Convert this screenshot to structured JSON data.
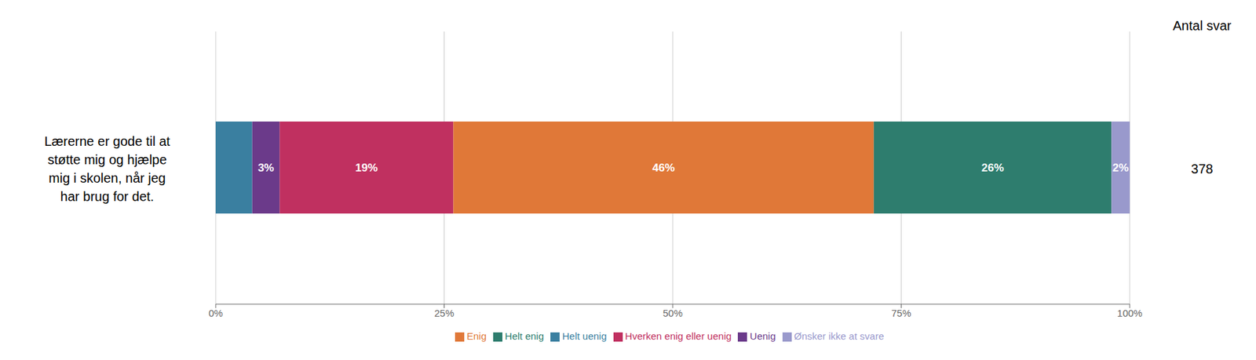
{
  "chart_data": {
    "type": "bar",
    "orientation": "horizontal",
    "stacked": true,
    "categories": [
      null
    ],
    "series": [
      {
        "name": "Helt uenig",
        "color": "#3a7fa0",
        "values": [
          4
        ],
        "value_labels": [
          null
        ]
      },
      {
        "name": "Uenig",
        "color": "#6b3a8a",
        "values": [
          3
        ],
        "value_labels": [
          "3%"
        ]
      },
      {
        "name": "Hverken enig eller uenig",
        "color": "#c03060",
        "values": [
          19
        ],
        "value_labels": [
          "19%"
        ]
      },
      {
        "name": "Enig",
        "color": "#e07838",
        "values": [
          46
        ],
        "value_labels": [
          "46%"
        ]
      },
      {
        "name": "Helt enig",
        "color": "#2e7d6e",
        "values": [
          26
        ],
        "value_labels": [
          "26%"
        ]
      },
      {
        "name": "Ønsker ikke at svare",
        "color": "#9999cc",
        "values": [
          2
        ],
        "value_labels": [
          "2%"
        ]
      }
    ],
    "xlim": [
      0,
      100
    ],
    "xticks": [
      {
        "value": 0,
        "label": "0%"
      },
      {
        "value": 25,
        "label": "25%"
      },
      {
        "value": 50,
        "label": "50%"
      },
      {
        "value": 75,
        "label": "75%"
      },
      {
        "value": 100,
        "label": "100%"
      }
    ],
    "grid": true,
    "legend": "bottom",
    "data_labels": true,
    "annotations": [
      "Lærerne er gode til at\nstøtte mig og hjælpe\nmig i skolen, når jeg\nhar brug for det.",
      "Antal svar",
      "378"
    ]
  }
}
